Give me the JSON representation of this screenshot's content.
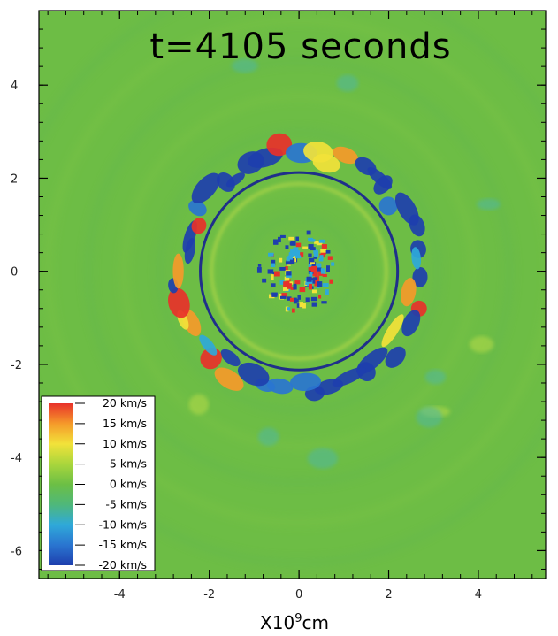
{
  "chart_data": {
    "type": "heatmap",
    "title": "t=4105 seconds",
    "xlabel": "X10⁹cm",
    "xlabel_base": "X10",
    "xlabel_exp": "9",
    "xlabel_unit": "cm",
    "ylabel": "",
    "xlim": [
      -5.8,
      5.5
    ],
    "ylim": [
      -6.6,
      5.6
    ],
    "x_ticks": [
      {
        "value": -4,
        "label": "-4"
      },
      {
        "value": -2,
        "label": "-2"
      },
      {
        "value": 0,
        "label": "0"
      },
      {
        "value": 2,
        "label": "2"
      },
      {
        "value": 4,
        "label": "4"
      }
    ],
    "y_ticks": [
      {
        "value": 4,
        "label": "4"
      },
      {
        "value": 2,
        "label": "2"
      },
      {
        "value": 0,
        "label": "0"
      },
      {
        "value": -2,
        "label": "-2"
      },
      {
        "value": -4,
        "label": "-4"
      },
      {
        "value": -6,
        "label": "-6"
      }
    ],
    "reference_circle_radius": 2.2,
    "colorbar": {
      "placement": "bottom-left",
      "ticks": [
        {
          "value": 20,
          "label": "20 km/s"
        },
        {
          "value": 15,
          "label": "15 km/s"
        },
        {
          "value": 10,
          "label": "10 km/s"
        },
        {
          "value": 5,
          "label": "5 km/s"
        },
        {
          "value": 0,
          "label": "0 km/s"
        },
        {
          "value": -5,
          "label": "-5 km/s"
        },
        {
          "value": -10,
          "label": "-10 km/s"
        },
        {
          "value": -15,
          "label": "-15 km/s"
        },
        {
          "value": -20,
          "label": "-20 km/s"
        }
      ],
      "colors": [
        "#e8312a",
        "#f59a2a",
        "#f2e23a",
        "#a9d63c",
        "#6cbf45",
        "#4fb87a",
        "#2fa9d9",
        "#2a75d0",
        "#1e3fae"
      ]
    },
    "background_color": "#6dbd45",
    "circle_color": "#1f2f8a"
  }
}
